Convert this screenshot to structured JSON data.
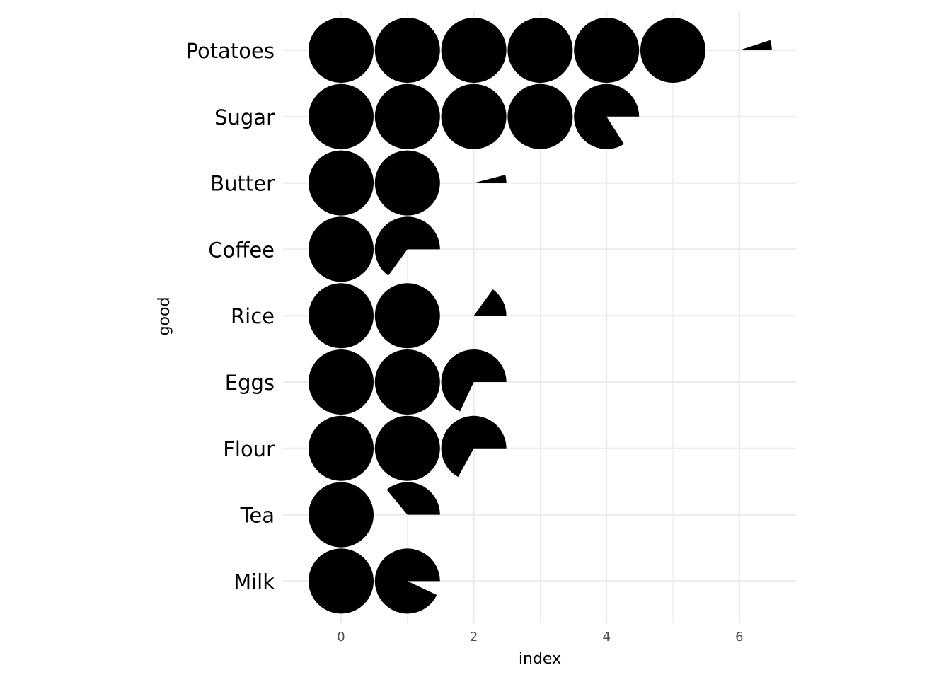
{
  "chart_data": {
    "type": "pictogram-pie",
    "xlabel": "index",
    "ylabel": "good",
    "x_ticks": [
      "0",
      "2",
      "4",
      "6"
    ],
    "xlim": [
      -0.87,
      6.85
    ],
    "grid": true,
    "categories": [
      "Potatoes",
      "Sugar",
      "Butter",
      "Coffee",
      "Rice",
      "Eggs",
      "Flour",
      "Tea",
      "Milk"
    ],
    "values": [
      6.05,
      4.84,
      2.04,
      1.65,
      2.15,
      2.68,
      2.67,
      1.36,
      1.93
    ],
    "mark_color": "#000000",
    "grid_color": "#ebebeb"
  }
}
